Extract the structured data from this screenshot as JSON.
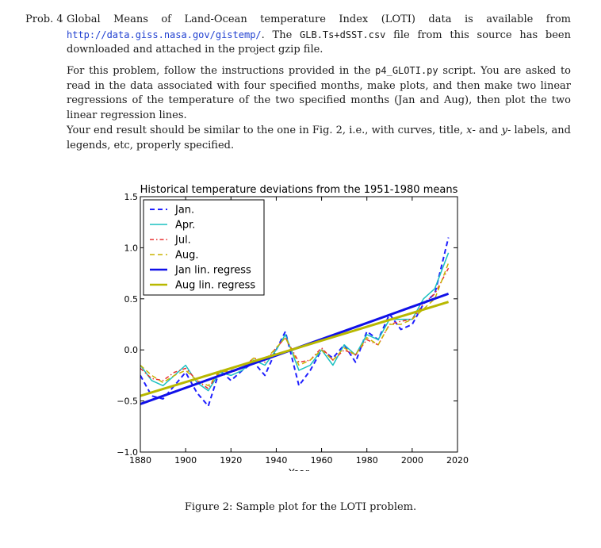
{
  "problem": {
    "label": "Prob. 4",
    "p1": {
      "t1": "Global Means of Land-Ocean temperature Index (LOTI) data is available from ",
      "url": "http://data.giss.nasa.gov/gistemp/",
      "t2": ". The ",
      "file": "GLB.Ts+dSST.csv",
      "t3": " file from this source has been downloaded and attached in the project gzip file."
    },
    "p2": {
      "t1": "For this problem, follow the instructions provided in the ",
      "script": "p4_GLOTI.py",
      "t2": " script. You are asked to read in the data associated with four specified months, make plots, and then make two linear regressions of the temperature of the two specified months (Jan and Aug), then plot the two linear regression lines."
    },
    "p3": {
      "t1": "Your end result should be similar to the one in Fig. 2, i.e., with curves, title, ",
      "x": "x",
      "t2": "- and ",
      "y": "y",
      "t3": "- labels, and legends, etc, properly specified."
    }
  },
  "figure": {
    "caption": "Figure 2: Sample plot for the LOTI problem."
  },
  "chart_data": {
    "type": "line",
    "title": "Historical temperature deviations from the 1951-1980 means",
    "xlabel": "Year",
    "ylabel": "",
    "xlim": [
      1880,
      2020
    ],
    "ylim": [
      -1.0,
      1.5
    ],
    "xticks": [
      1880,
      1900,
      1920,
      1940,
      1960,
      1980,
      2000,
      2020
    ],
    "yticks": [
      -1.0,
      -0.5,
      0.0,
      0.5,
      1.0,
      1.5
    ],
    "ytick_labels": [
      "−1.0",
      "−0.5",
      "0.0",
      "0.5",
      "1.0",
      "1.5"
    ],
    "legend_position": "upper-left",
    "grid": false,
    "series": [
      {
        "name": "Jan.",
        "color": "#1f1fff",
        "style": "dashed",
        "width": 2,
        "x": [
          1880,
          1885,
          1890,
          1895,
          1900,
          1905,
          1910,
          1915,
          1920,
          1925,
          1930,
          1935,
          1940,
          1944,
          1950,
          1955,
          1960,
          1965,
          1970,
          1975,
          1980,
          1985,
          1990,
          1995,
          2000,
          2005,
          2010,
          2016
        ],
        "y": [
          -0.25,
          -0.45,
          -0.48,
          -0.35,
          -0.22,
          -0.42,
          -0.55,
          -0.2,
          -0.3,
          -0.2,
          -0.12,
          -0.25,
          0.0,
          0.18,
          -0.35,
          -0.2,
          0.0,
          -0.08,
          0.05,
          -0.12,
          0.18,
          0.1,
          0.35,
          0.2,
          0.25,
          0.45,
          0.55,
          1.1
        ]
      },
      {
        "name": "Apr.",
        "color": "#1ac0c0",
        "style": "solid",
        "width": 1.5,
        "x": [
          1880,
          1885,
          1890,
          1895,
          1900,
          1905,
          1910,
          1915,
          1920,
          1925,
          1930,
          1935,
          1940,
          1944,
          1950,
          1955,
          1960,
          1965,
          1970,
          1975,
          1980,
          1985,
          1990,
          1995,
          2000,
          2005,
          2010,
          2016
        ],
        "y": [
          -0.15,
          -0.3,
          -0.35,
          -0.25,
          -0.15,
          -0.32,
          -0.4,
          -0.22,
          -0.25,
          -0.2,
          -0.1,
          -0.15,
          0.0,
          0.15,
          -0.2,
          -0.15,
          0.0,
          -0.15,
          0.05,
          -0.05,
          0.15,
          0.1,
          0.3,
          0.3,
          0.3,
          0.5,
          0.6,
          0.95
        ]
      },
      {
        "name": "Jul.",
        "color": "#e83030",
        "style": "dashdot",
        "width": 1.5,
        "x": [
          1880,
          1885,
          1890,
          1895,
          1900,
          1905,
          1910,
          1915,
          1920,
          1925,
          1930,
          1935,
          1940,
          1944,
          1950,
          1955,
          1960,
          1965,
          1970,
          1975,
          1980,
          1985,
          1990,
          1995,
          2000,
          2005,
          2010,
          2016
        ],
        "y": [
          -0.18,
          -0.28,
          -0.3,
          -0.22,
          -0.18,
          -0.3,
          -0.38,
          -0.2,
          -0.22,
          -0.18,
          -0.08,
          -0.12,
          0.02,
          0.12,
          -0.12,
          -0.1,
          0.02,
          -0.1,
          0.0,
          -0.05,
          0.1,
          0.05,
          0.25,
          0.28,
          0.3,
          0.45,
          0.55,
          0.8
        ]
      },
      {
        "name": "Aug.",
        "color": "#c8b400",
        "style": "dashed",
        "width": 1.5,
        "x": [
          1880,
          1885,
          1890,
          1895,
          1900,
          1905,
          1910,
          1915,
          1920,
          1925,
          1930,
          1935,
          1940,
          1944,
          1950,
          1955,
          1960,
          1965,
          1970,
          1975,
          1980,
          1985,
          1990,
          1995,
          2000,
          2005,
          2010,
          2016
        ],
        "y": [
          -0.15,
          -0.25,
          -0.32,
          -0.25,
          -0.2,
          -0.3,
          -0.35,
          -0.22,
          -0.2,
          -0.18,
          -0.08,
          -0.1,
          0.02,
          0.12,
          -0.15,
          -0.1,
          0.0,
          -0.1,
          0.02,
          -0.05,
          0.12,
          0.05,
          0.25,
          0.25,
          0.3,
          0.4,
          0.5,
          0.85
        ]
      },
      {
        "name": "Jan lin. regress",
        "color": "#1010e8",
        "style": "solid",
        "width": 3,
        "x": [
          1880,
          2016
        ],
        "y": [
          -0.53,
          0.55
        ]
      },
      {
        "name": "Aug lin. regress",
        "color": "#b8b800",
        "style": "solid",
        "width": 3,
        "x": [
          1880,
          2016
        ],
        "y": [
          -0.45,
          0.47
        ]
      }
    ]
  }
}
